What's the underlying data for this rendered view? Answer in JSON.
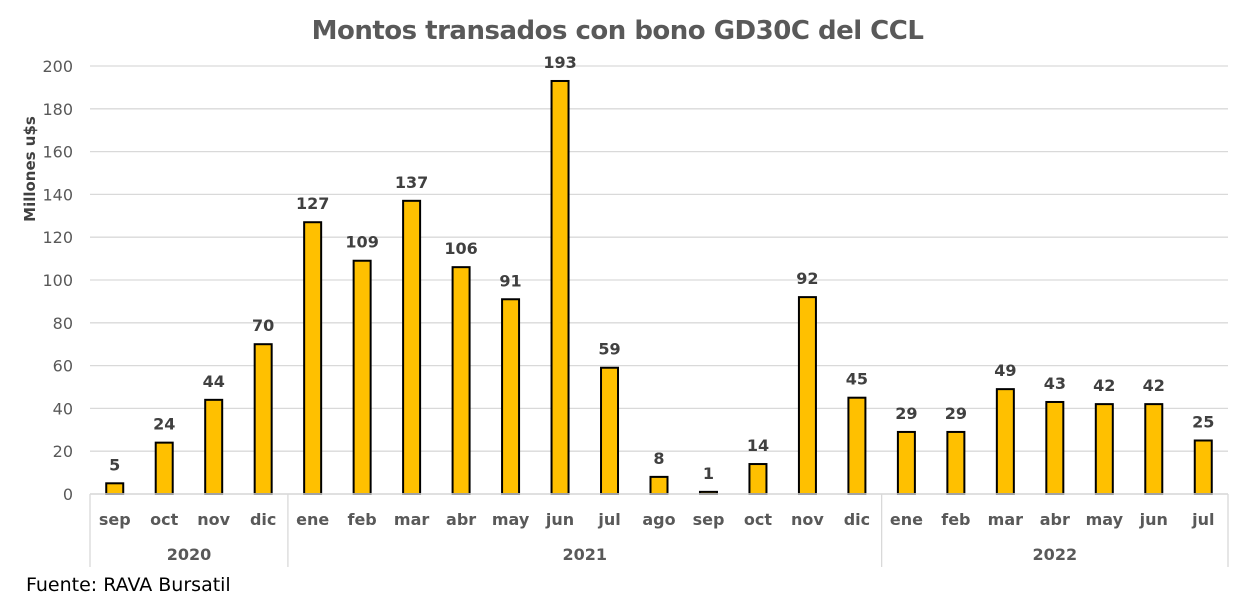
{
  "chart_data": {
    "type": "bar",
    "title": "Montos transados con bono GD30C del CCL",
    "xlabel": "",
    "ylabel": "Millones u$s",
    "ylim": [
      0,
      200
    ],
    "yticks": [
      0,
      20,
      40,
      60,
      80,
      100,
      120,
      140,
      160,
      180,
      200
    ],
    "grid": true,
    "legend": null,
    "bar_color": "#FFC000",
    "bar_edge_color": "#000000",
    "categories": [
      "sep",
      "oct",
      "nov",
      "dic",
      "ene",
      "feb",
      "mar",
      "abr",
      "may",
      "jun",
      "jul",
      "ago",
      "sep",
      "oct",
      "nov",
      "dic",
      "ene",
      "feb",
      "mar",
      "abr",
      "may",
      "jun",
      "jul"
    ],
    "groups": [
      {
        "label": "2020",
        "start": 0,
        "count": 4
      },
      {
        "label": "2021",
        "start": 4,
        "count": 12
      },
      {
        "label": "2022",
        "start": 16,
        "count": 7
      }
    ],
    "values": [
      5,
      24,
      44,
      70,
      127,
      109,
      137,
      106,
      91,
      193,
      59,
      8,
      1,
      14,
      92,
      45,
      29,
      29,
      49,
      43,
      42,
      42,
      25
    ],
    "data_labels": true
  },
  "footer": {
    "source": "Fuente: RAVA Bursatil"
  }
}
